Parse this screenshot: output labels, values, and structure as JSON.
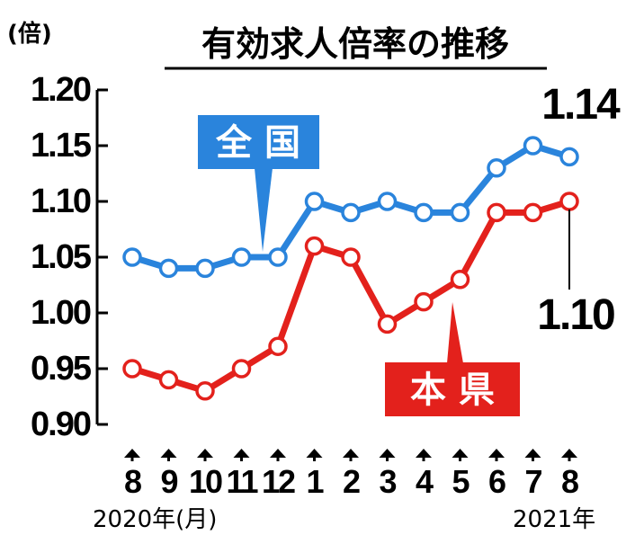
{
  "chart_data": {
    "type": "line",
    "title": "有効求人倍率の推移",
    "unit_label": "(倍)",
    "categories": [
      "8",
      "9",
      "10",
      "11",
      "12",
      "1",
      "2",
      "3",
      "4",
      "5",
      "6",
      "7",
      "8"
    ],
    "x_start_label": "2020年(月)",
    "x_end_label": "2021年",
    "ylim": [
      0.9,
      1.2
    ],
    "yticks": [
      "0.90",
      "0.95",
      "1.00",
      "1.05",
      "1.10",
      "1.15",
      "1.20"
    ],
    "grid": false,
    "series": [
      {
        "name": "全 国",
        "color": "#2a84dc",
        "values": [
          1.05,
          1.04,
          1.04,
          1.05,
          1.05,
          1.1,
          1.09,
          1.1,
          1.09,
          1.09,
          1.13,
          1.15,
          1.14
        ],
        "end_label": "1.14"
      },
      {
        "name": "本 県",
        "color": "#e3211c",
        "values": [
          0.95,
          0.94,
          0.93,
          0.95,
          0.97,
          1.06,
          1.05,
          0.99,
          1.01,
          1.03,
          1.09,
          1.09,
          1.1
        ],
        "end_label": "1.10"
      }
    ]
  }
}
